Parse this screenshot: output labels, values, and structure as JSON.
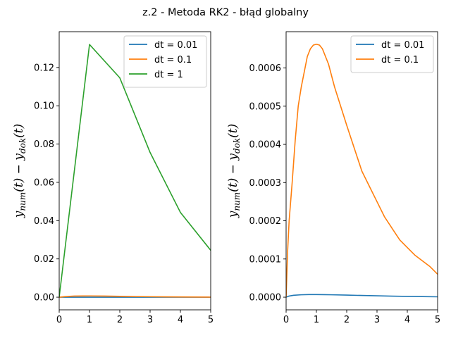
{
  "figure": {
    "title": "z.2 - Metoda RK2 - błąd globalny",
    "colors": {
      "dt_0_01": "#1f77b4",
      "dt_0_1": "#ff7f0e",
      "dt_1": "#2ca02c"
    }
  },
  "chart_data": [
    {
      "type": "line",
      "title": "",
      "xlabel": "",
      "ylabel_parts": [
        "y",
        "num",
        "(t) − y",
        "dok",
        "(t)"
      ],
      "xlim": [
        0,
        5
      ],
      "ylim": [
        -0.0066,
        0.1387
      ],
      "xticks": [
        "0",
        "1",
        "2",
        "3",
        "4",
        "5"
      ],
      "yticks": [
        "0.00",
        "0.02",
        "0.04",
        "0.06",
        "0.08",
        "0.10",
        "0.12"
      ],
      "ytick_values": [
        0,
        0.02,
        0.04,
        0.06,
        0.08,
        0.1,
        0.12
      ],
      "legend": "top-right",
      "series": [
        {
          "name": "dt = 0.01",
          "color": "#1f77b4",
          "x": [
            0,
            0.5,
            1,
            1.5,
            2,
            2.5,
            3,
            3.5,
            4,
            4.5,
            5
          ],
          "y": [
            0,
            5e-06,
            7e-06,
            6e-06,
            5e-06,
            4e-06,
            3e-06,
            2e-06,
            2e-06,
            1e-06,
            1e-06
          ]
        },
        {
          "name": "dt = 0.1",
          "color": "#ff7f0e",
          "x": [
            0,
            0.2,
            0.5,
            0.8,
            1,
            1.5,
            2,
            2.5,
            3,
            3.5,
            4,
            4.5,
            5
          ],
          "y": [
            0,
            0.00033,
            0.00058,
            0.00065,
            0.000662,
            0.00059,
            0.00045,
            0.00034,
            0.00025,
            0.00017,
            0.00012,
            8e-05,
            6e-05
          ]
        },
        {
          "name": "dt = 1",
          "color": "#2ca02c",
          "x": [
            0,
            1,
            2,
            3,
            4,
            5
          ],
          "y": [
            0,
            0.132,
            0.1146,
            0.0756,
            0.0443,
            0.0245
          ]
        }
      ]
    },
    {
      "type": "line",
      "title": "",
      "xlabel": "",
      "ylabel_parts": [
        "y",
        "num",
        "(t) − y",
        "dok",
        "(t)"
      ],
      "xlim": [
        0,
        5
      ],
      "ylim": [
        -3.31e-05,
        0.000695
      ],
      "xticks": [
        "0",
        "1",
        "2",
        "3",
        "4",
        "5"
      ],
      "yticks": [
        "0.0000",
        "0.0001",
        "0.0002",
        "0.0003",
        "0.0004",
        "0.0005",
        "0.0006"
      ],
      "ytick_values": [
        0,
        0.0001,
        0.0002,
        0.0003,
        0.0004,
        0.0005,
        0.0006
      ],
      "legend": "top-right",
      "series": [
        {
          "name": "dt = 0.01",
          "color": "#1f77b4",
          "x": [
            0,
            0.1,
            0.25,
            0.5,
            0.75,
            1,
            1.25,
            1.5,
            2,
            2.5,
            3,
            3.5,
            4,
            4.5,
            5
          ],
          "y": [
            0,
            3e-06,
            5e-06,
            6.3e-06,
            6.8e-06,
            6.8e-06,
            6.6e-06,
            6.3e-06,
            5.4e-06,
            4.5e-06,
            3.6e-06,
            2.8e-06,
            2.1e-06,
            1.5e-06,
            1e-06
          ]
        },
        {
          "name": "dt = 0.1",
          "color": "#ff7f0e",
          "x": [
            0,
            0.05,
            0.1,
            0.2,
            0.3,
            0.4,
            0.5,
            0.6,
            0.7,
            0.8,
            0.9,
            1.0,
            1.1,
            1.2,
            1.4,
            1.6,
            1.8,
            2.0,
            2.25,
            2.5,
            2.75,
            3.0,
            3.25,
            3.5,
            3.75,
            4.0,
            4.25,
            4.5,
            4.75,
            5.0
          ],
          "y": [
            0,
            0.00012,
            0.0002,
            0.0003,
            0.00041,
            0.0005,
            0.00055,
            0.00059,
            0.00063,
            0.00065,
            0.00066,
            0.000662,
            0.00066,
            0.00065,
            0.00061,
            0.00055,
            0.0005,
            0.00045,
            0.00039,
            0.00033,
            0.00029,
            0.00025,
            0.00021,
            0.00018,
            0.00015,
            0.00013,
            0.00011,
            9.5e-05,
            8e-05,
            6e-05
          ]
        }
      ]
    }
  ]
}
